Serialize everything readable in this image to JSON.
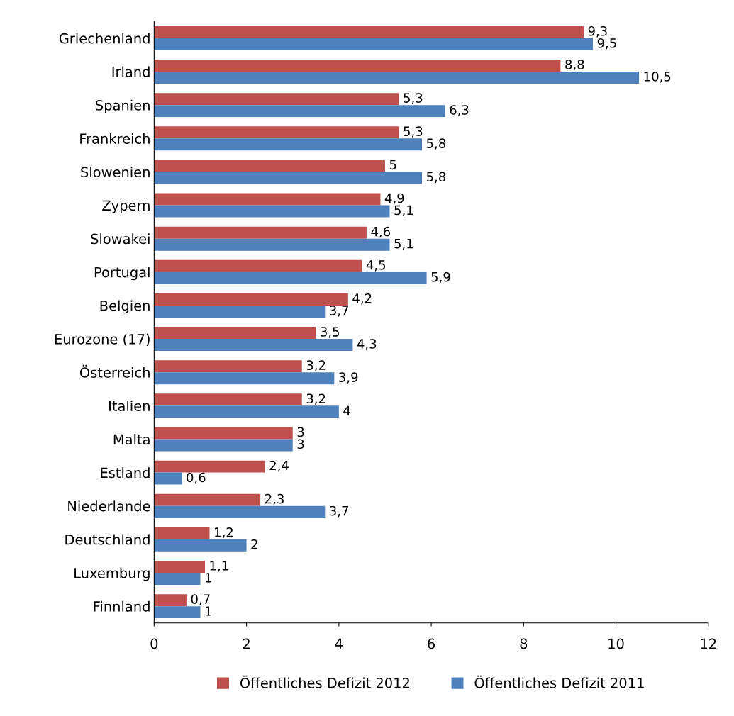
{
  "chart_data": {
    "type": "bar",
    "orientation": "horizontal",
    "categories": [
      "Griechenland",
      "Irland",
      "Spanien",
      "Frankreich",
      "Slowenien",
      "Zypern",
      "Slowakei",
      "Portugal",
      "Belgien",
      "Eurozone (17)",
      "Österreich",
      "Italien",
      "Malta",
      "Estland",
      "Niederlande",
      "Deutschland",
      "Luxemburg",
      "Finnland"
    ],
    "series": [
      {
        "name": "Öffentliches Defizit 2012",
        "color": "#c0504d",
        "values": [
          9.3,
          8.8,
          5.3,
          5.3,
          5,
          4.9,
          4.6,
          4.5,
          4.2,
          3.5,
          3.2,
          3.2,
          3,
          2.4,
          2.3,
          1.2,
          1.1,
          0.7
        ],
        "value_labels": [
          "9,3",
          "8,8",
          "5,3",
          "5,3",
          "5",
          "4,9",
          "4,6",
          "4,5",
          "4,2",
          "3,5",
          "3,2",
          "3,2",
          "3",
          "2,4",
          "2,3",
          "1,2",
          "1,1",
          "0,7"
        ]
      },
      {
        "name": "Öffentliches Defizit 2011",
        "color": "#4f81bd",
        "values": [
          9.5,
          10.5,
          6.3,
          5.8,
          5.8,
          5.1,
          5.1,
          5.9,
          3.7,
          4.3,
          3.9,
          4,
          3,
          0.6,
          3.7,
          2,
          1,
          1
        ],
        "value_labels": [
          "9,5",
          "10,5",
          "6,3",
          "5,8",
          "5,8",
          "5,1",
          "5,1",
          "5,9",
          "3,7",
          "4,3",
          "3,9",
          "4",
          "3",
          "0,6",
          "3,7",
          "2",
          "1",
          "1"
        ]
      }
    ],
    "xlim": [
      0,
      12
    ],
    "xticks": [
      0,
      2,
      4,
      6,
      8,
      10,
      12
    ],
    "grid": false,
    "legend": "bottom"
  }
}
